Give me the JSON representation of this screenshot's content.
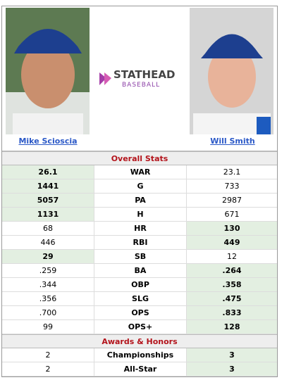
{
  "players": [
    {
      "name": "Mike Scioscia"
    },
    {
      "name": "Will Smith"
    }
  ],
  "logo": {
    "brand": "STATHEAD",
    "sub": "BASEBALL"
  },
  "sections": [
    {
      "title": "Overall Stats",
      "rows": [
        {
          "stat": "WAR",
          "left": "26.1",
          "right": "23.1",
          "leader": "left"
        },
        {
          "stat": "G",
          "left": "1441",
          "right": "733",
          "leader": "left"
        },
        {
          "stat": "PA",
          "left": "5057",
          "right": "2987",
          "leader": "left"
        },
        {
          "stat": "H",
          "left": "1131",
          "right": "671",
          "leader": "left"
        },
        {
          "stat": "HR",
          "left": "68",
          "right": "130",
          "leader": "right"
        },
        {
          "stat": "RBI",
          "left": "446",
          "right": "449",
          "leader": "right"
        },
        {
          "stat": "SB",
          "left": "29",
          "right": "12",
          "leader": "left"
        },
        {
          "stat": "BA",
          "left": ".259",
          "right": ".264",
          "leader": "right"
        },
        {
          "stat": "OBP",
          "left": ".344",
          "right": ".358",
          "leader": "right"
        },
        {
          "stat": "SLG",
          "left": ".356",
          "right": ".475",
          "leader": "right"
        },
        {
          "stat": "OPS",
          "left": ".700",
          "right": ".833",
          "leader": "right"
        },
        {
          "stat": "OPS+",
          "left": "99",
          "right": "128",
          "leader": "right"
        }
      ]
    },
    {
      "title": "Awards & Honors",
      "rows": [
        {
          "stat": "Championships",
          "left": "2",
          "right": "3",
          "leader": "right"
        },
        {
          "stat": "All-Star",
          "left": "2",
          "right": "3",
          "leader": "right"
        }
      ]
    }
  ]
}
